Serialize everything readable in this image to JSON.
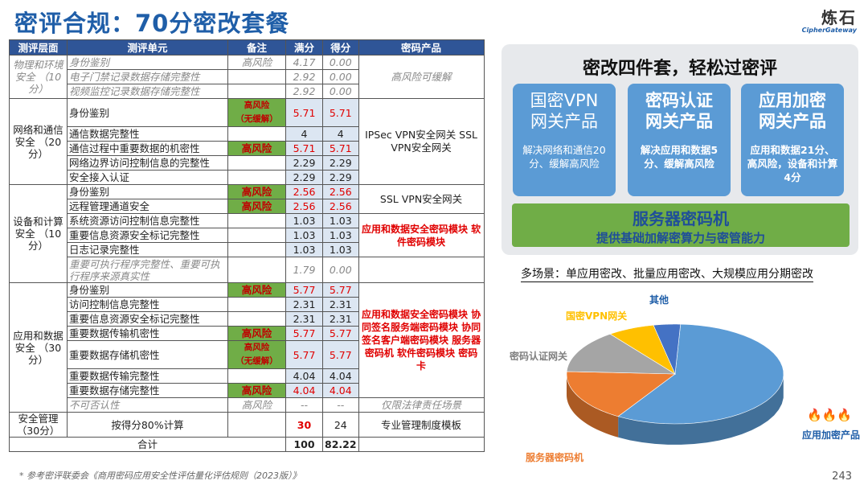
{
  "title": "密评合规：70分密改套餐",
  "logo": {
    "cn": "炼石",
    "en": "CipherGateway"
  },
  "table": {
    "headers": [
      "测评层面",
      "测评单元",
      "备注",
      "满分",
      "得分",
      "密码产品"
    ],
    "total_label": "合计",
    "total_full": "100",
    "total_score": "82.22"
  },
  "rows": {
    "phys": {
      "layer": "物理和环境安全\n（10分）",
      "product": "高风险可缓解",
      "units": [
        {
          "unit": "身份鉴别",
          "note": "高风险",
          "full": "4.17",
          "score": "0.00"
        },
        {
          "unit": "电子门禁记录数据存储完整性",
          "note": "",
          "full": "2.92",
          "score": "0.00"
        },
        {
          "unit": "视频监控记录数据存储完整性",
          "note": "",
          "full": "2.92",
          "score": "0.00"
        }
      ]
    },
    "net": {
      "layer": "网络和通信安全\n（20分）",
      "product": "IPSec VPN安全网关\nSSL VPN安全网关",
      "units": [
        {
          "unit": "身份鉴别",
          "note": "高风险\n（无缓解）",
          "full": "5.71",
          "score": "5.71"
        },
        {
          "unit": "通信数据完整性",
          "note": "",
          "full": "4",
          "score": "4"
        },
        {
          "unit": "通信过程中重要数据的机密性",
          "note": "高风险",
          "full": "5.71",
          "score": "5.71"
        },
        {
          "unit": "网络边界访问控制信息的完整性",
          "note": "",
          "full": "2.29",
          "score": "2.29"
        },
        {
          "unit": "安全接入认证",
          "note": "",
          "full": "2.29",
          "score": "2.29"
        }
      ]
    },
    "dev": {
      "layer": "设备和计算安全\n（10分）",
      "product1": "SSL VPN安全网关",
      "product2": "应用和数据安全密码模块\n软件密码模块",
      "units": [
        {
          "unit": "身份鉴别",
          "note": "高风险",
          "full": "2.56",
          "score": "2.56"
        },
        {
          "unit": "远程管理通道安全",
          "note": "高风险",
          "full": "2.56",
          "score": "2.56"
        },
        {
          "unit": "系统资源访问控制信息完整性",
          "note": "",
          "full": "1.03",
          "score": "1.03"
        },
        {
          "unit": "重要信息资源安全标记完整性",
          "note": "",
          "full": "1.03",
          "score": "1.03"
        },
        {
          "unit": "日志记录完整性",
          "note": "",
          "full": "1.03",
          "score": "1.03"
        },
        {
          "unit": "重要可执行程序完整性、重要可执行程序来源真实性",
          "note": "",
          "full": "1.79",
          "score": "0.00"
        }
      ]
    },
    "app": {
      "layer": "应用和数据安全\n（30分）",
      "product": "应用和数据安全密码模块\n协同签名服务端密码模块\n协同签名客户端密码模块\n服务器密码机\n软件密码模块\n密码卡",
      "units": [
        {
          "unit": "身份鉴别",
          "note": "高风险",
          "full": "5.77",
          "score": "5.77"
        },
        {
          "unit": "访问控制信息完整性",
          "note": "",
          "full": "2.31",
          "score": "2.31"
        },
        {
          "unit": "重要信息资源安全标记完整性",
          "note": "",
          "full": "2.31",
          "score": "2.31"
        },
        {
          "unit": "重要数据传输机密性",
          "note": "高风险",
          "full": "5.77",
          "score": "5.77"
        },
        {
          "unit": "重要数据存储机密性",
          "note": "高风险\n（无缓解）",
          "full": "5.77",
          "score": "5.77"
        },
        {
          "unit": "重要数据传输完整性",
          "note": "",
          "full": "4.04",
          "score": "4.04"
        },
        {
          "unit": "重要数据存储完整性",
          "note": "高风险",
          "full": "4.04",
          "score": "4.04"
        },
        {
          "unit": "不可否认性",
          "note": "高风险",
          "full": "--",
          "score": "--",
          "product": "仅限法律责任场景"
        }
      ]
    },
    "mgmt": {
      "layer": "安全管理\n（30分）",
      "unit": "按得分80%计算",
      "full": "30",
      "score": "24",
      "product": "专业管理制度模板"
    }
  },
  "panel": {
    "title": "密改四件套，轻松过密评",
    "cards": [
      {
        "title": "国密VPN\n网关产品",
        "desc": "解决网络和通信20分、缓解高风险"
      },
      {
        "title": "密码认证\n网关产品",
        "desc": "解决应用和数据5分、缓解高风险"
      },
      {
        "title": "应用加密\n网关产品",
        "desc": "应用和数据21分、高风险，设备和计算4分"
      }
    ],
    "green_title": "服务器密码机",
    "green_desc": "提供基础加解密算力与密管能力"
  },
  "scenarios": "多场景：单应用密改、批量应用密改、大规模应用分期密改",
  "chart_data": {
    "type": "pie",
    "title": "",
    "labels": [
      "应用加密产品",
      "服务器密码机",
      "密码认证网关",
      "国密VPN网关",
      "其他"
    ],
    "values": [
      58,
      17,
      14,
      7,
      4
    ],
    "colors": [
      "#5b9bd5",
      "#ed7d31",
      "#a5a5a5",
      "#ffc000",
      "#4472c4"
    ],
    "annotation": "🔥🔥🔥"
  },
  "footnote": "* 参考密评联委会《商用密码应用安全性评估量化评估规则（2023版）》",
  "page_number": "243"
}
